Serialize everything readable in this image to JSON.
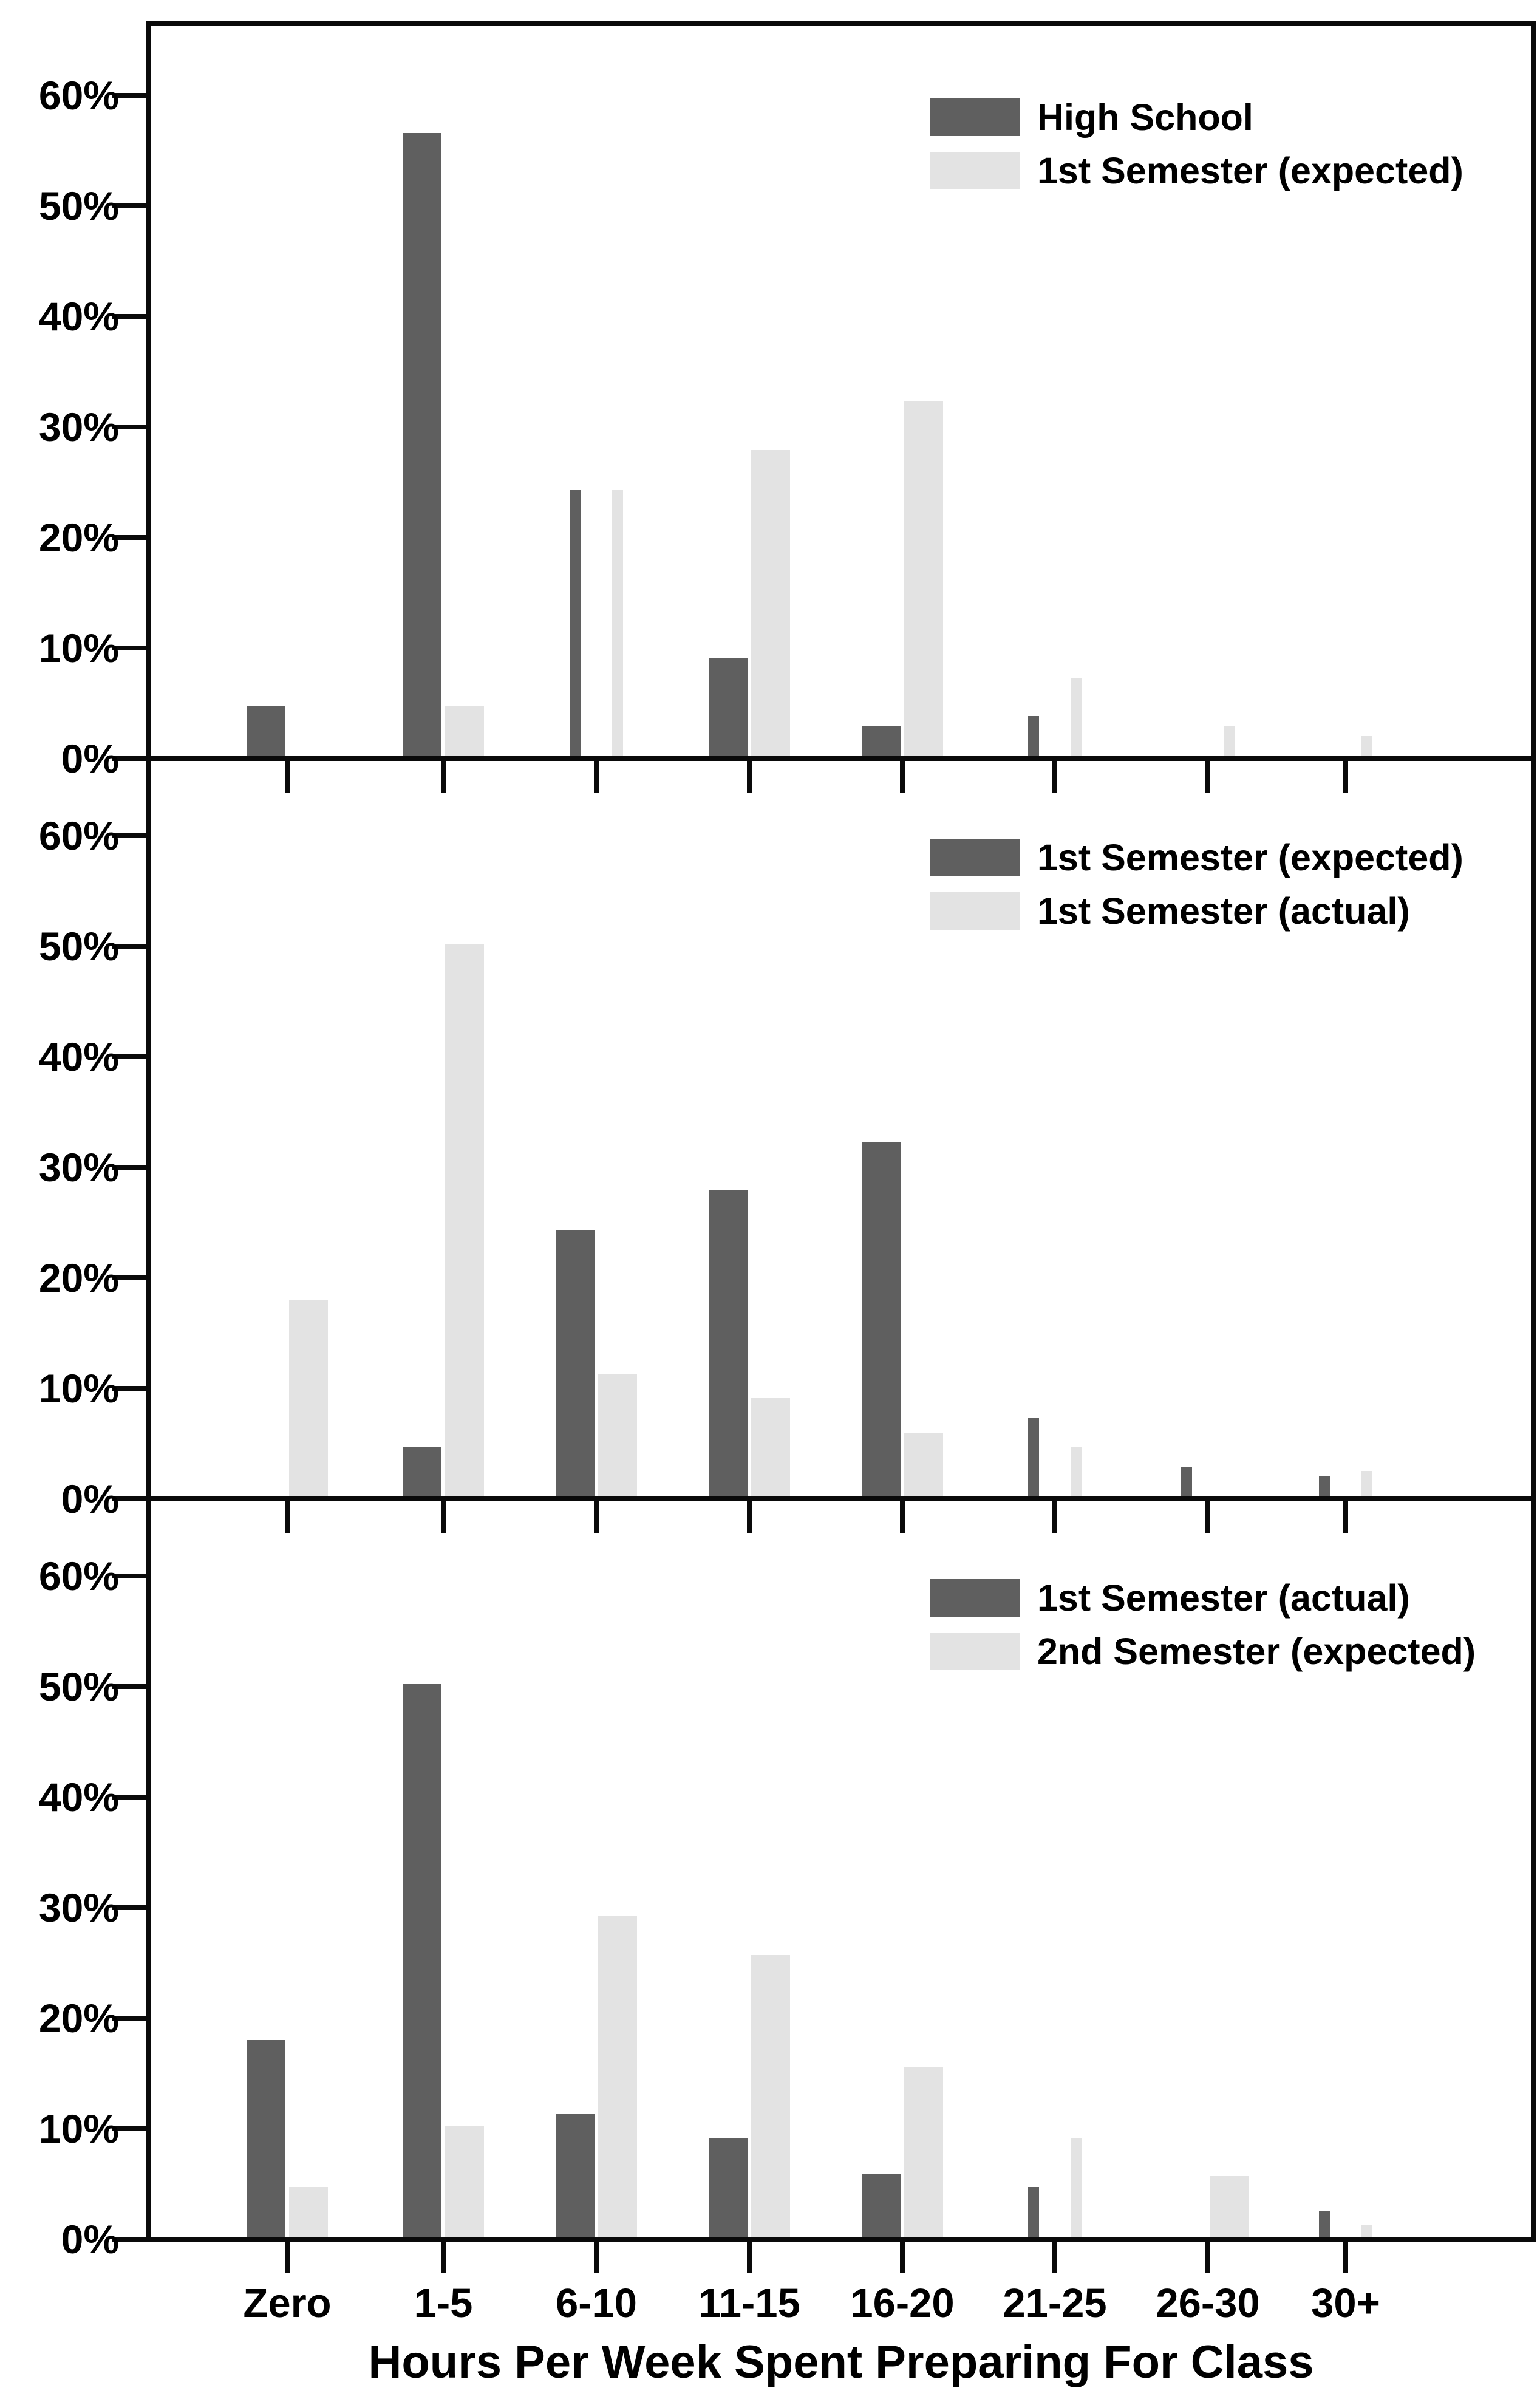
{
  "chart_data": {
    "type": "bar",
    "title": "Hours Per Week Spent Preparing For Class",
    "xlabel": "Hours Per Week Spent Preparing For Class",
    "ylabel": "",
    "layout": "three vertically stacked grouped-bar panels sharing one x-axis",
    "categories": [
      "Zero",
      "1-5",
      "6-10",
      "11-15",
      "16-20",
      "21-25",
      "26-30",
      "30+"
    ],
    "y_tick_labels": [
      "0%",
      "10%",
      "20%",
      "30%",
      "40%",
      "50%",
      "60%"
    ],
    "ylim": [
      0,
      66.5
    ],
    "grid": false,
    "legend_position": "upper-right-inside",
    "colors": {
      "dark_series": "#5f5f5f",
      "light_series": "#e3e3e3",
      "axis": "#0a0a0a",
      "background": "#ffffff"
    },
    "panels": [
      {
        "id": "top",
        "legend": [
          {
            "label": "High School",
            "shade": "dark"
          },
          {
            "label": "1st Semester (expected)",
            "shade": "light"
          }
        ],
        "series": [
          {
            "name": "High School",
            "shade": "dark",
            "values": [
              4.5,
              56.4,
              24.1,
              8.9,
              2.7,
              3.6,
              0,
              0
            ],
            "narrow_categories": [
              2,
              5
            ]
          },
          {
            "name": "1st Semester (expected)",
            "shade": "light",
            "values": [
              0,
              4.5,
              24.1,
              27.7,
              32.1,
              7.1,
              2.7,
              1.8
            ],
            "narrow_categories": [
              2,
              5,
              6,
              7
            ]
          }
        ]
      },
      {
        "id": "middle",
        "legend": [
          {
            "label": "1st Semester (expected)",
            "shade": "dark"
          },
          {
            "label": "1st Semester (actual)",
            "shade": "light"
          }
        ],
        "series": [
          {
            "name": "1st Semester (expected)",
            "shade": "dark",
            "values": [
              0,
              4.5,
              24.1,
              27.7,
              32.1,
              7.1,
              2.7,
              1.8
            ],
            "narrow_categories": [
              5,
              6,
              7
            ]
          },
          {
            "name": "1st Semester (actual)",
            "shade": "light",
            "values": [
              17.8,
              50.0,
              11.1,
              8.9,
              5.7,
              4.5,
              0,
              2.3
            ],
            "narrow_categories": [
              5,
              7
            ]
          }
        ]
      },
      {
        "id": "bottom",
        "legend": [
          {
            "label": "1st Semester (actual)",
            "shade": "dark"
          },
          {
            "label": "2nd Semester (expected)",
            "shade": "light"
          }
        ],
        "series": [
          {
            "name": "1st Semester (actual)",
            "shade": "dark",
            "values": [
              17.8,
              50.0,
              11.1,
              8.9,
              5.7,
              4.5,
              0,
              2.3
            ],
            "narrow_categories": [
              5,
              7
            ]
          },
          {
            "name": "2nd Semester (expected)",
            "shade": "light",
            "values": [
              4.5,
              10.0,
              29.0,
              25.5,
              15.4,
              8.9,
              5.5,
              1.1
            ],
            "narrow_categories": [
              5,
              7
            ]
          }
        ]
      }
    ]
  }
}
